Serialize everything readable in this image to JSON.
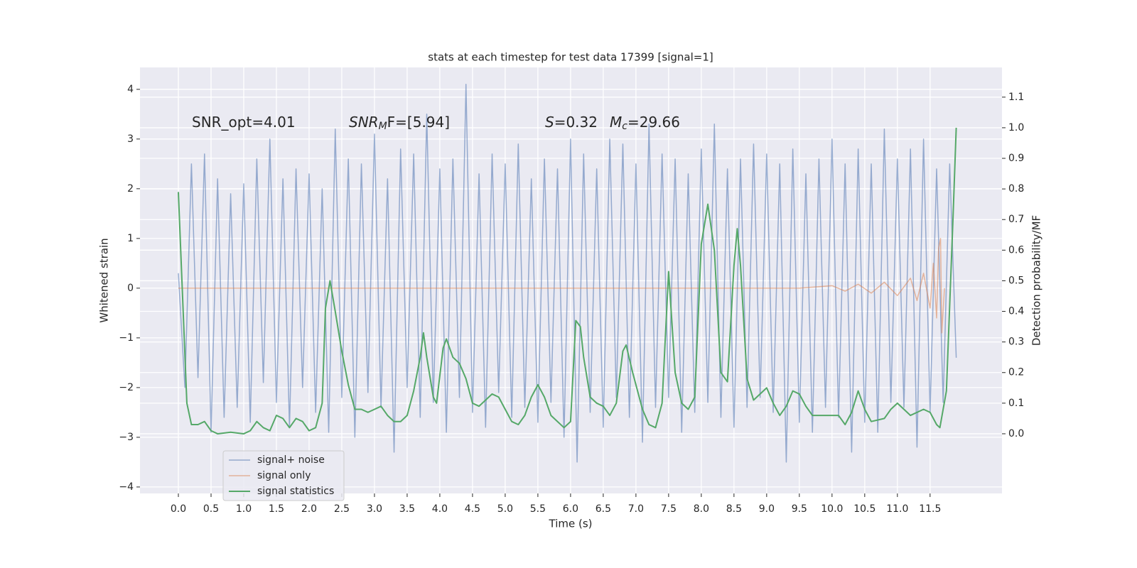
{
  "chart_data": {
    "type": "line",
    "title": "stats at each timestep for test data 17399 [signal=1]",
    "xlabel": "Time (s)",
    "ylabel": "Whitened strain",
    "y2label": "Detection probability/MF",
    "annotations": [
      {
        "base": "SNR_opt=4.01"
      },
      {
        "base": "SNR",
        "sub": "M",
        "rest": "F=[5.94]"
      },
      {
        "base": "S",
        "rest": "=0.32"
      },
      {
        "base": "M",
        "sub": "c",
        "rest": "=29.66"
      }
    ],
    "grid": true,
    "legend": "lower left",
    "xlim": [
      -0.587,
      12.6
    ],
    "xticks": [
      {
        "value": 0,
        "label": "0.0"
      },
      0.5,
      {
        "value": 1,
        "label": "1.0"
      },
      1.5,
      {
        "value": 2,
        "label": "2.0"
      },
      2.5,
      {
        "value": 3,
        "label": "3.0"
      },
      3.5,
      {
        "value": 4,
        "label": "4.0"
      },
      4.5,
      {
        "value": 5,
        "label": "5.0"
      },
      5.5,
      {
        "value": 6,
        "label": "6.0"
      },
      6.5,
      {
        "value": 7,
        "label": "7.0"
      },
      7.5,
      {
        "value": 8,
        "label": "8.0"
      },
      8.5,
      {
        "value": 9,
        "label": "9.0"
      },
      9.5,
      {
        "value": 10,
        "label": "10.0"
      },
      10.5,
      {
        "value": 11,
        "label": "11.0"
      },
      11.5
    ],
    "ylim": [
      -4.13,
      4.44
    ],
    "yticks": [
      {
        "value": -4,
        "label": "−4"
      },
      {
        "value": -3,
        "label": "−3"
      },
      {
        "value": -2,
        "label": "−2"
      },
      {
        "value": -1,
        "label": "−1"
      },
      0,
      1,
      2,
      3,
      4
    ],
    "y2lim": [
      -0.195,
      1.197
    ],
    "y2ticks": [
      {
        "value": 0,
        "label": "0.0"
      },
      0.1,
      0.2,
      0.3,
      0.4,
      0.5,
      0.6,
      0.7,
      0.8,
      0.9,
      {
        "value": 1,
        "label": "1.0"
      },
      1.1
    ],
    "series": [
      {
        "name": "signal+ noise",
        "color": "#4c72b0",
        "x": [
          0.0,
          0.1,
          0.2,
          0.3,
          0.4,
          0.5,
          0.6,
          0.7,
          0.8,
          0.9,
          1.0,
          1.1,
          1.2,
          1.3,
          1.4,
          1.5,
          1.6,
          1.7,
          1.8,
          1.9,
          2.0,
          2.1,
          2.2,
          2.3,
          2.4,
          2.5,
          2.6,
          2.7,
          2.8,
          2.9,
          3.0,
          3.1,
          3.2,
          3.3,
          3.4,
          3.5,
          3.6,
          3.7,
          3.8,
          3.9,
          4.0,
          4.1,
          4.2,
          4.3,
          4.4,
          4.5,
          4.6,
          4.7,
          4.8,
          4.9,
          5.0,
          5.1,
          5.2,
          5.3,
          5.4,
          5.5,
          5.6,
          5.7,
          5.8,
          5.9,
          6.0,
          6.1,
          6.2,
          6.3,
          6.4,
          6.5,
          6.6,
          6.7,
          6.8,
          6.9,
          7.0,
          7.1,
          7.2,
          7.3,
          7.4,
          7.5,
          7.6,
          7.7,
          7.8,
          7.9,
          8.0,
          8.1,
          8.2,
          8.3,
          8.4,
          8.5,
          8.6,
          8.7,
          8.8,
          8.9,
          9.0,
          9.1,
          9.2,
          9.3,
          9.4,
          9.5,
          9.6,
          9.7,
          9.8,
          9.9,
          10.0,
          10.1,
          10.2,
          10.3,
          10.4,
          10.5,
          10.6,
          10.7,
          10.8,
          10.9,
          11.0,
          11.1,
          11.2,
          11.3,
          11.4,
          11.5,
          11.6,
          11.7,
          11.8,
          11.9
        ],
        "values": [
          0.3,
          -2.0,
          2.5,
          -1.8,
          2.7,
          -2.9,
          2.2,
          -2.6,
          1.9,
          -2.4,
          2.1,
          -2.7,
          2.6,
          -1.9,
          3.0,
          -2.3,
          2.2,
          -2.8,
          2.4,
          -2.0,
          2.3,
          -2.5,
          2.0,
          -2.9,
          3.2,
          -2.2,
          2.6,
          -3.0,
          2.5,
          -2.1,
          3.1,
          -2.4,
          2.2,
          -3.3,
          2.8,
          -2.0,
          2.7,
          -2.6,
          3.5,
          -2.3,
          2.4,
          -2.9,
          2.6,
          -2.2,
          4.1,
          -2.5,
          2.3,
          -2.8,
          2.7,
          -2.1,
          2.5,
          -2.6,
          2.9,
          -2.4,
          2.2,
          -2.7,
          2.6,
          -2.3,
          2.4,
          -3.0,
          3.0,
          -3.5,
          2.7,
          -2.5,
          2.4,
          -2.8,
          3.0,
          -2.2,
          2.9,
          -2.6,
          2.5,
          -3.1,
          3.3,
          -2.4,
          2.7,
          -2.2,
          2.6,
          -2.9,
          2.3,
          -2.5,
          2.8,
          -2.3,
          3.3,
          -2.6,
          2.4,
          -2.8,
          2.6,
          -2.4,
          2.9,
          -2.2,
          2.7,
          -2.5,
          2.5,
          -3.5,
          2.8,
          -2.7,
          2.3,
          -2.9,
          2.6,
          -2.4,
          3.0,
          -2.6,
          2.5,
          -3.3,
          2.8,
          -2.7,
          2.5,
          -2.9,
          3.2,
          -2.3,
          2.6,
          -2.4,
          2.8,
          -3.2,
          3.0,
          -2.5,
          2.4,
          -2.3,
          2.5,
          -1.4
        ]
      },
      {
        "name": "signal only",
        "color": "#dd8452",
        "x": [
          0.0,
          9.5,
          10.0,
          10.2,
          10.4,
          10.6,
          10.8,
          11.0,
          11.2,
          11.3,
          11.4,
          11.5,
          11.55,
          11.6,
          11.63,
          11.66,
          11.68,
          11.72
        ],
        "values": [
          0,
          0,
          0.05,
          -0.06,
          0.08,
          -0.1,
          0.12,
          -0.15,
          0.2,
          -0.25,
          0.3,
          -0.4,
          0.5,
          -0.6,
          0.8,
          1.0,
          -0.9,
          0
        ]
      },
      {
        "name": "signal statistics",
        "color": "#55a868",
        "axis": "y2",
        "x": [
          0.0,
          0.13,
          0.2,
          0.3,
          0.4,
          0.5,
          0.6,
          0.8,
          1.0,
          1.1,
          1.2,
          1.3,
          1.4,
          1.5,
          1.6,
          1.7,
          1.8,
          1.9,
          2.0,
          2.1,
          2.2,
          2.25,
          2.32,
          2.4,
          2.5,
          2.6,
          2.7,
          2.8,
          2.9,
          3.0,
          3.1,
          3.2,
          3.3,
          3.4,
          3.5,
          3.6,
          3.7,
          3.75,
          3.8,
          3.9,
          3.95,
          4.05,
          4.1,
          4.2,
          4.3,
          4.4,
          4.5,
          4.6,
          4.7,
          4.8,
          4.9,
          5.0,
          5.1,
          5.2,
          5.3,
          5.4,
          5.5,
          5.6,
          5.7,
          5.8,
          5.9,
          6.0,
          6.08,
          6.15,
          6.2,
          6.3,
          6.4,
          6.5,
          6.6,
          6.7,
          6.8,
          6.85,
          6.95,
          7.1,
          7.2,
          7.3,
          7.4,
          7.5,
          7.6,
          7.7,
          7.8,
          7.9,
          8.0,
          8.1,
          8.2,
          8.3,
          8.4,
          8.5,
          8.55,
          8.6,
          8.7,
          8.8,
          8.9,
          9.0,
          9.1,
          9.2,
          9.3,
          9.4,
          9.5,
          9.6,
          9.7,
          9.9,
          10.1,
          10.2,
          10.3,
          10.4,
          10.5,
          10.6,
          10.8,
          10.9,
          11.0,
          11.1,
          11.2,
          11.4,
          11.5,
          11.6,
          11.65,
          11.75,
          11.85,
          11.9
        ],
        "values": [
          0.79,
          0.1,
          0.03,
          0.03,
          0.04,
          0.01,
          0.0,
          0.005,
          0.0,
          0.01,
          0.04,
          0.02,
          0.01,
          0.06,
          0.05,
          0.02,
          0.05,
          0.04,
          0.01,
          0.02,
          0.1,
          0.41,
          0.5,
          0.4,
          0.27,
          0.16,
          0.08,
          0.08,
          0.07,
          0.08,
          0.09,
          0.06,
          0.04,
          0.04,
          0.06,
          0.14,
          0.25,
          0.33,
          0.25,
          0.12,
          0.1,
          0.28,
          0.31,
          0.25,
          0.23,
          0.18,
          0.1,
          0.09,
          0.11,
          0.13,
          0.12,
          0.08,
          0.04,
          0.03,
          0.06,
          0.12,
          0.16,
          0.12,
          0.06,
          0.04,
          0.02,
          0.04,
          0.37,
          0.35,
          0.25,
          0.12,
          0.1,
          0.09,
          0.06,
          0.1,
          0.27,
          0.29,
          0.2,
          0.08,
          0.03,
          0.02,
          0.1,
          0.53,
          0.2,
          0.1,
          0.08,
          0.12,
          0.62,
          0.75,
          0.6,
          0.2,
          0.17,
          0.55,
          0.67,
          0.55,
          0.18,
          0.11,
          0.13,
          0.15,
          0.1,
          0.06,
          0.09,
          0.14,
          0.13,
          0.09,
          0.06,
          0.06,
          0.06,
          0.03,
          0.07,
          0.14,
          0.08,
          0.04,
          0.05,
          0.08,
          0.1,
          0.08,
          0.06,
          0.08,
          0.07,
          0.03,
          0.02,
          0.14,
          0.7,
          1.0
        ]
      }
    ]
  }
}
